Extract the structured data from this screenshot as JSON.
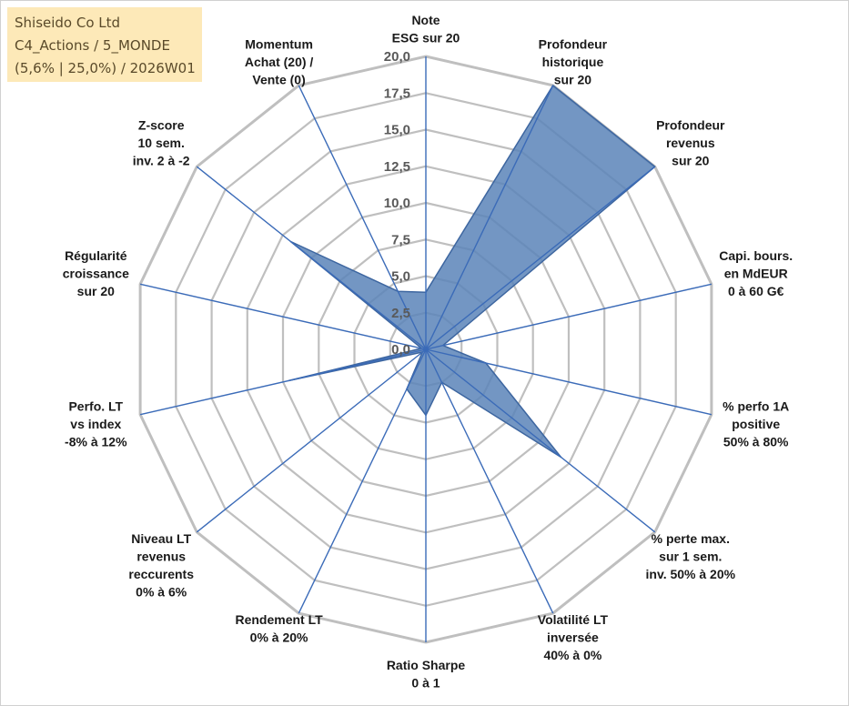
{
  "title_box": {
    "line1": "Shiseido Co Ltd",
    "line2": "C4_Actions / 5_MONDE",
    "line3": "(5,6% | 25,0%) / 2026W01"
  },
  "chart_data": {
    "type": "radar",
    "r_min": 0,
    "r_max": 20,
    "r_step": 2.5,
    "tick_labels": [
      "0,0",
      "2,5",
      "5,0",
      "7,5",
      "10,0",
      "12,5",
      "15,0",
      "17,5",
      "20,0"
    ],
    "axes": [
      {
        "label": [
          "Note",
          "ESG sur 20"
        ],
        "value": 3.9
      },
      {
        "label": [
          "Profondeur",
          "historique",
          "sur 20"
        ],
        "value": 20
      },
      {
        "label": [
          "Profondeur",
          "revenus",
          "sur 20"
        ],
        "value": 20
      },
      {
        "label": [
          "Capi. bours.",
          "en MdEUR",
          "0 à 60 G€"
        ],
        "value": 1.2
      },
      {
        "label": [
          "% perfo 1A",
          "positive",
          "50% à 80%"
        ],
        "value": 4.2
      },
      {
        "label": [
          "% perte max.",
          "sur 1 sem.",
          "inv. 50% à 20%"
        ],
        "value": 11.8
      },
      {
        "label": [
          "Volatilité LT",
          "inversée",
          "40% à 0%"
        ],
        "value": 2.5
      },
      {
        "label": [
          "Ratio Sharpe",
          "0 à 1"
        ],
        "value": 4.5
      },
      {
        "label": [
          "Rendement LT",
          "0% à 20%"
        ],
        "value": 3.0
      },
      {
        "label": [
          "Niveau LT",
          "revenus",
          "reccurents",
          "0% à 6%"
        ],
        "value": 0.3
      },
      {
        "label": [
          "Perfo. LT",
          "vs index",
          "-8% à 12%"
        ],
        "value": 9.6
      },
      {
        "label": [
          "Régularité",
          "croissance",
          "sur 20"
        ],
        "value": 0.3
      },
      {
        "label": [
          "Z-score",
          "10 sem.",
          "inv. 2 à -2"
        ],
        "value": 11.8
      },
      {
        "label": [
          "Momentum",
          "Achat (20) /",
          "Vente (0)"
        ],
        "value": 4.4
      }
    ],
    "grid": true,
    "colors": {
      "fill": "#5b84b8",
      "stroke": "#3d66a0",
      "spoke": "#3b6bb8",
      "grid": "#bfbfbf"
    }
  }
}
